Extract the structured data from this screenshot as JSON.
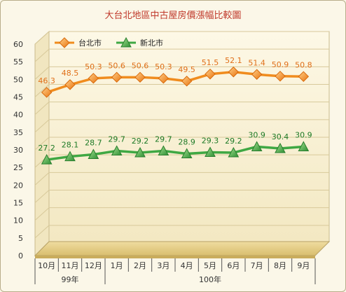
{
  "chart_data": {
    "type": "line",
    "title": "大台北地區中古屋房價漲幅比較圖",
    "categories": [
      "10月",
      "11月",
      "12月",
      "1月",
      "2月",
      "3月",
      "4月",
      "5月",
      "6月",
      "7月",
      "8月",
      "9月"
    ],
    "year_groups": [
      {
        "label": "99年",
        "start": 0,
        "end": 2
      },
      {
        "label": "100年",
        "start": 3,
        "end": 11
      }
    ],
    "series": [
      {
        "name": "台北市",
        "values": [
          46.3,
          48.5,
          50.3,
          50.6,
          50.6,
          50.3,
          49.5,
          51.5,
          52.1,
          51.4,
          50.9,
          50.8
        ],
        "color": "#f08c1e",
        "label_color": "#e0701a",
        "marker": "diamond"
      },
      {
        "name": "新北市",
        "values": [
          27.2,
          28.1,
          28.7,
          29.7,
          29.2,
          29.7,
          28.9,
          29.3,
          29.2,
          30.9,
          30.4,
          30.9
        ],
        "color": "#3fa843",
        "label_color": "#1e7a26",
        "marker": "triangle"
      }
    ],
    "ylim": [
      0,
      60
    ],
    "yticks": [
      0,
      5,
      10,
      15,
      20,
      25,
      30,
      35,
      40,
      45,
      50,
      55,
      60
    ],
    "grid": true,
    "legend": "top-left",
    "xlabel": "",
    "ylabel": ""
  }
}
